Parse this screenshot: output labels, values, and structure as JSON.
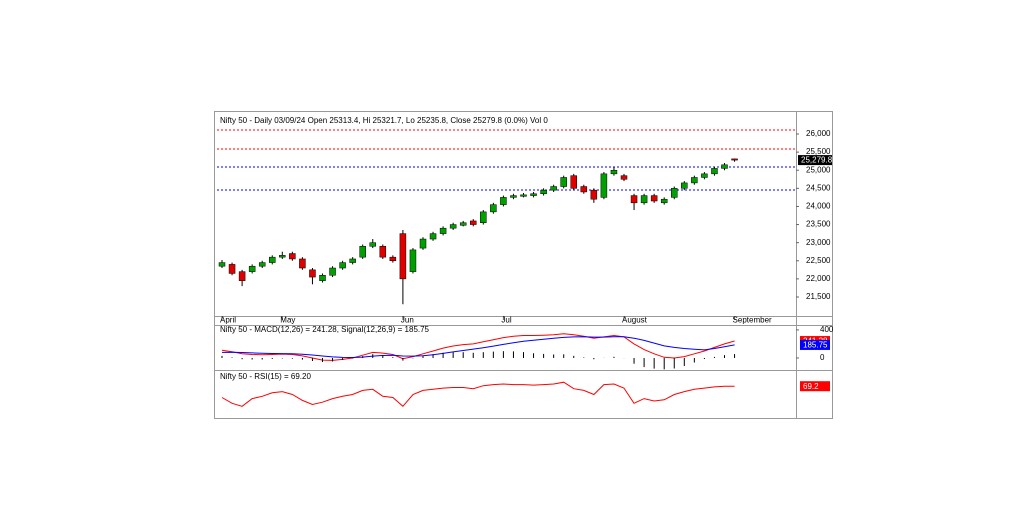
{
  "chart_data": [
    {
      "type": "candlestick",
      "title": "Nifty 50 - Daily 03/09/24 Open 25313.4, Hi 25321.7, Lo 25235.8, Close 25279.8 (0.0%) Vol 0",
      "categories": [
        "April",
        null,
        null,
        null,
        null,
        null,
        "May",
        null,
        null,
        null,
        null,
        null,
        null,
        null,
        null,
        null,
        null,
        null,
        "Jun",
        null,
        null,
        null,
        null,
        null,
        null,
        null,
        null,
        null,
        "Jul",
        null,
        null,
        null,
        null,
        null,
        null,
        null,
        null,
        null,
        null,
        null,
        "August",
        null,
        null,
        null,
        null,
        null,
        null,
        null,
        null,
        null,
        null,
        "September"
      ],
      "open": [
        22350,
        22400,
        22200,
        22200,
        22350,
        22450,
        22600,
        22700,
        22550,
        22250,
        21950,
        22100,
        22300,
        22450,
        22600,
        22900,
        22900,
        22600,
        23250,
        22200,
        22850,
        23100,
        23250,
        23400,
        23480,
        23600,
        23550,
        23850,
        24050,
        24250,
        24280,
        24300,
        24350,
        24450,
        24550,
        24850,
        24550,
        24450,
        24250,
        24900,
        24850,
        24300,
        24100,
        24300,
        24100,
        24250,
        24500,
        24650,
        24800,
        24900,
        25050,
        25313.4
      ],
      "high": [
        22520,
        22450,
        22250,
        22400,
        22500,
        22650,
        22750,
        22750,
        22600,
        22300,
        22150,
        22350,
        22500,
        22600,
        22950,
        23100,
        22950,
        22650,
        23350,
        22850,
        23150,
        23300,
        23450,
        23550,
        23600,
        23650,
        23900,
        24100,
        24300,
        24350,
        24370,
        24400,
        24500,
        24600,
        24850,
        24900,
        24600,
        24500,
        24950,
        25080,
        24900,
        24350,
        24350,
        24350,
        24250,
        24550,
        24700,
        24850,
        24950,
        25100,
        25200,
        25321.7
      ],
      "low": [
        22300,
        22100,
        21800,
        22150,
        22300,
        22400,
        22550,
        22500,
        22250,
        21850,
        21900,
        22050,
        22250,
        22400,
        22550,
        22850,
        22550,
        22450,
        21300,
        22150,
        22800,
        23050,
        23200,
        23350,
        23450,
        23450,
        23500,
        23800,
        24000,
        24200,
        24250,
        24250,
        24300,
        24400,
        24500,
        24450,
        24350,
        24100,
        24200,
        24850,
        24700,
        23900,
        24050,
        24100,
        24050,
        24200,
        24450,
        24600,
        24750,
        24850,
        25000,
        25235.8
      ],
      "close": [
        22450,
        22150,
        21950,
        22350,
        22450,
        22600,
        22650,
        22550,
        22300,
        22050,
        22100,
        22300,
        22450,
        22550,
        22900,
        23000,
        22600,
        22500,
        22000,
        22800,
        23100,
        23250,
        23400,
        23500,
        23550,
        23500,
        23850,
        24050,
        24250,
        24300,
        24320,
        24350,
        24450,
        24550,
        24800,
        24500,
        24400,
        24200,
        24900,
        25000,
        24750,
        24100,
        24300,
        24150,
        24200,
        24500,
        24650,
        24800,
        24900,
        25050,
        25150,
        25279.8
      ],
      "up_color": "#00a000",
      "down_color": "#e00000",
      "ylim": [
        20975,
        26525
      ],
      "yticks": [
        {
          "value": 21500,
          "label": "21,500"
        },
        {
          "value": 22000,
          "label": "22,000"
        },
        {
          "value": 22500,
          "label": "22,500"
        },
        {
          "value": 23000,
          "label": "23,000"
        },
        {
          "value": 23500,
          "label": "23,500"
        },
        {
          "value": 24000,
          "label": "24,000"
        },
        {
          "value": 24500,
          "label": "24,500"
        },
        {
          "value": 25000,
          "label": "25,000"
        },
        {
          "value": 25500,
          "label": "25,500"
        },
        {
          "value": 26000,
          "label": "26,000"
        }
      ],
      "hlines": [
        {
          "value": 26110,
          "color": "#ff0000"
        },
        {
          "value": 25586,
          "color": "#ff0000"
        },
        {
          "value": 25088,
          "color": "#0000ff"
        },
        {
          "value": 24453,
          "color": "#0000ff"
        }
      ],
      "price_marker": {
        "value": 25279.8,
        "label": "25,279.8"
      }
    },
    {
      "type": "macd",
      "title": "Nifty 50 - MACD(12,26) = 241.28, Signal(12,26,9) = 185.75",
      "series": [
        {
          "name": "MACD",
          "color": "#ff0000",
          "values": [
            110,
            90,
            60,
            50,
            45,
            50,
            55,
            50,
            30,
            0,
            -30,
            -35,
            -20,
            0,
            40,
            80,
            70,
            50,
            -10,
            20,
            60,
            100,
            140,
            170,
            190,
            200,
            230,
            260,
            290,
            310,
            320,
            320,
            325,
            330,
            345,
            330,
            310,
            280,
            300,
            320,
            300,
            200,
            120,
            60,
            10,
            0,
            20,
            60,
            100,
            150,
            200,
            241.28
          ]
        },
        {
          "name": "Signal",
          "color": "#0000ff",
          "values": [
            80,
            82,
            78,
            72,
            67,
            64,
            62,
            60,
            54,
            43,
            28,
            15,
            8,
            6,
            13,
            26,
            35,
            38,
            28,
            26,
            33,
            46,
            65,
            86,
            107,
            126,
            147,
            169,
            193,
            216,
            237,
            253,
            267,
            280,
            293,
            300,
            302,
            298,
            298,
            303,
            302,
            282,
            250,
            212,
            172,
            150,
            135,
            125,
            115,
            135,
            160,
            185.75
          ]
        },
        {
          "name": "Histogram",
          "color": "#000000",
          "values": [
            30,
            8,
            -18,
            -22,
            -22,
            -14,
            -7,
            -10,
            -24,
            -43,
            -58,
            -50,
            -28,
            -6,
            27,
            54,
            35,
            12,
            -38,
            -6,
            27,
            54,
            75,
            84,
            83,
            74,
            83,
            91,
            97,
            94,
            83,
            67,
            58,
            50,
            52,
            30,
            8,
            -18,
            2,
            17,
            -2,
            -82,
            -130,
            -152,
            -162,
            -150,
            -115,
            -65,
            -15,
            15,
            40,
            55
          ]
        }
      ],
      "ylim": [
        -143,
        470
      ],
      "yticks": [
        0,
        400
      ]
    },
    {
      "type": "line",
      "title": "Nifty 50 - RSI(15) = 69.20",
      "series": [
        {
          "name": "RSI",
          "color": "#ff0000",
          "values": [
            50,
            40,
            35,
            48,
            52,
            58,
            60,
            55,
            45,
            38,
            42,
            48,
            52,
            55,
            62,
            64,
            52,
            50,
            35,
            55,
            62,
            64,
            66,
            67,
            67,
            65,
            70,
            72,
            73,
            72,
            72,
            71,
            72,
            73,
            76,
            65,
            62,
            55,
            72,
            73,
            66,
            40,
            48,
            44,
            46,
            55,
            60,
            64,
            66,
            68,
            69,
            69.2
          ]
        }
      ],
      "ylim": [
        15,
        90
      ]
    }
  ]
}
